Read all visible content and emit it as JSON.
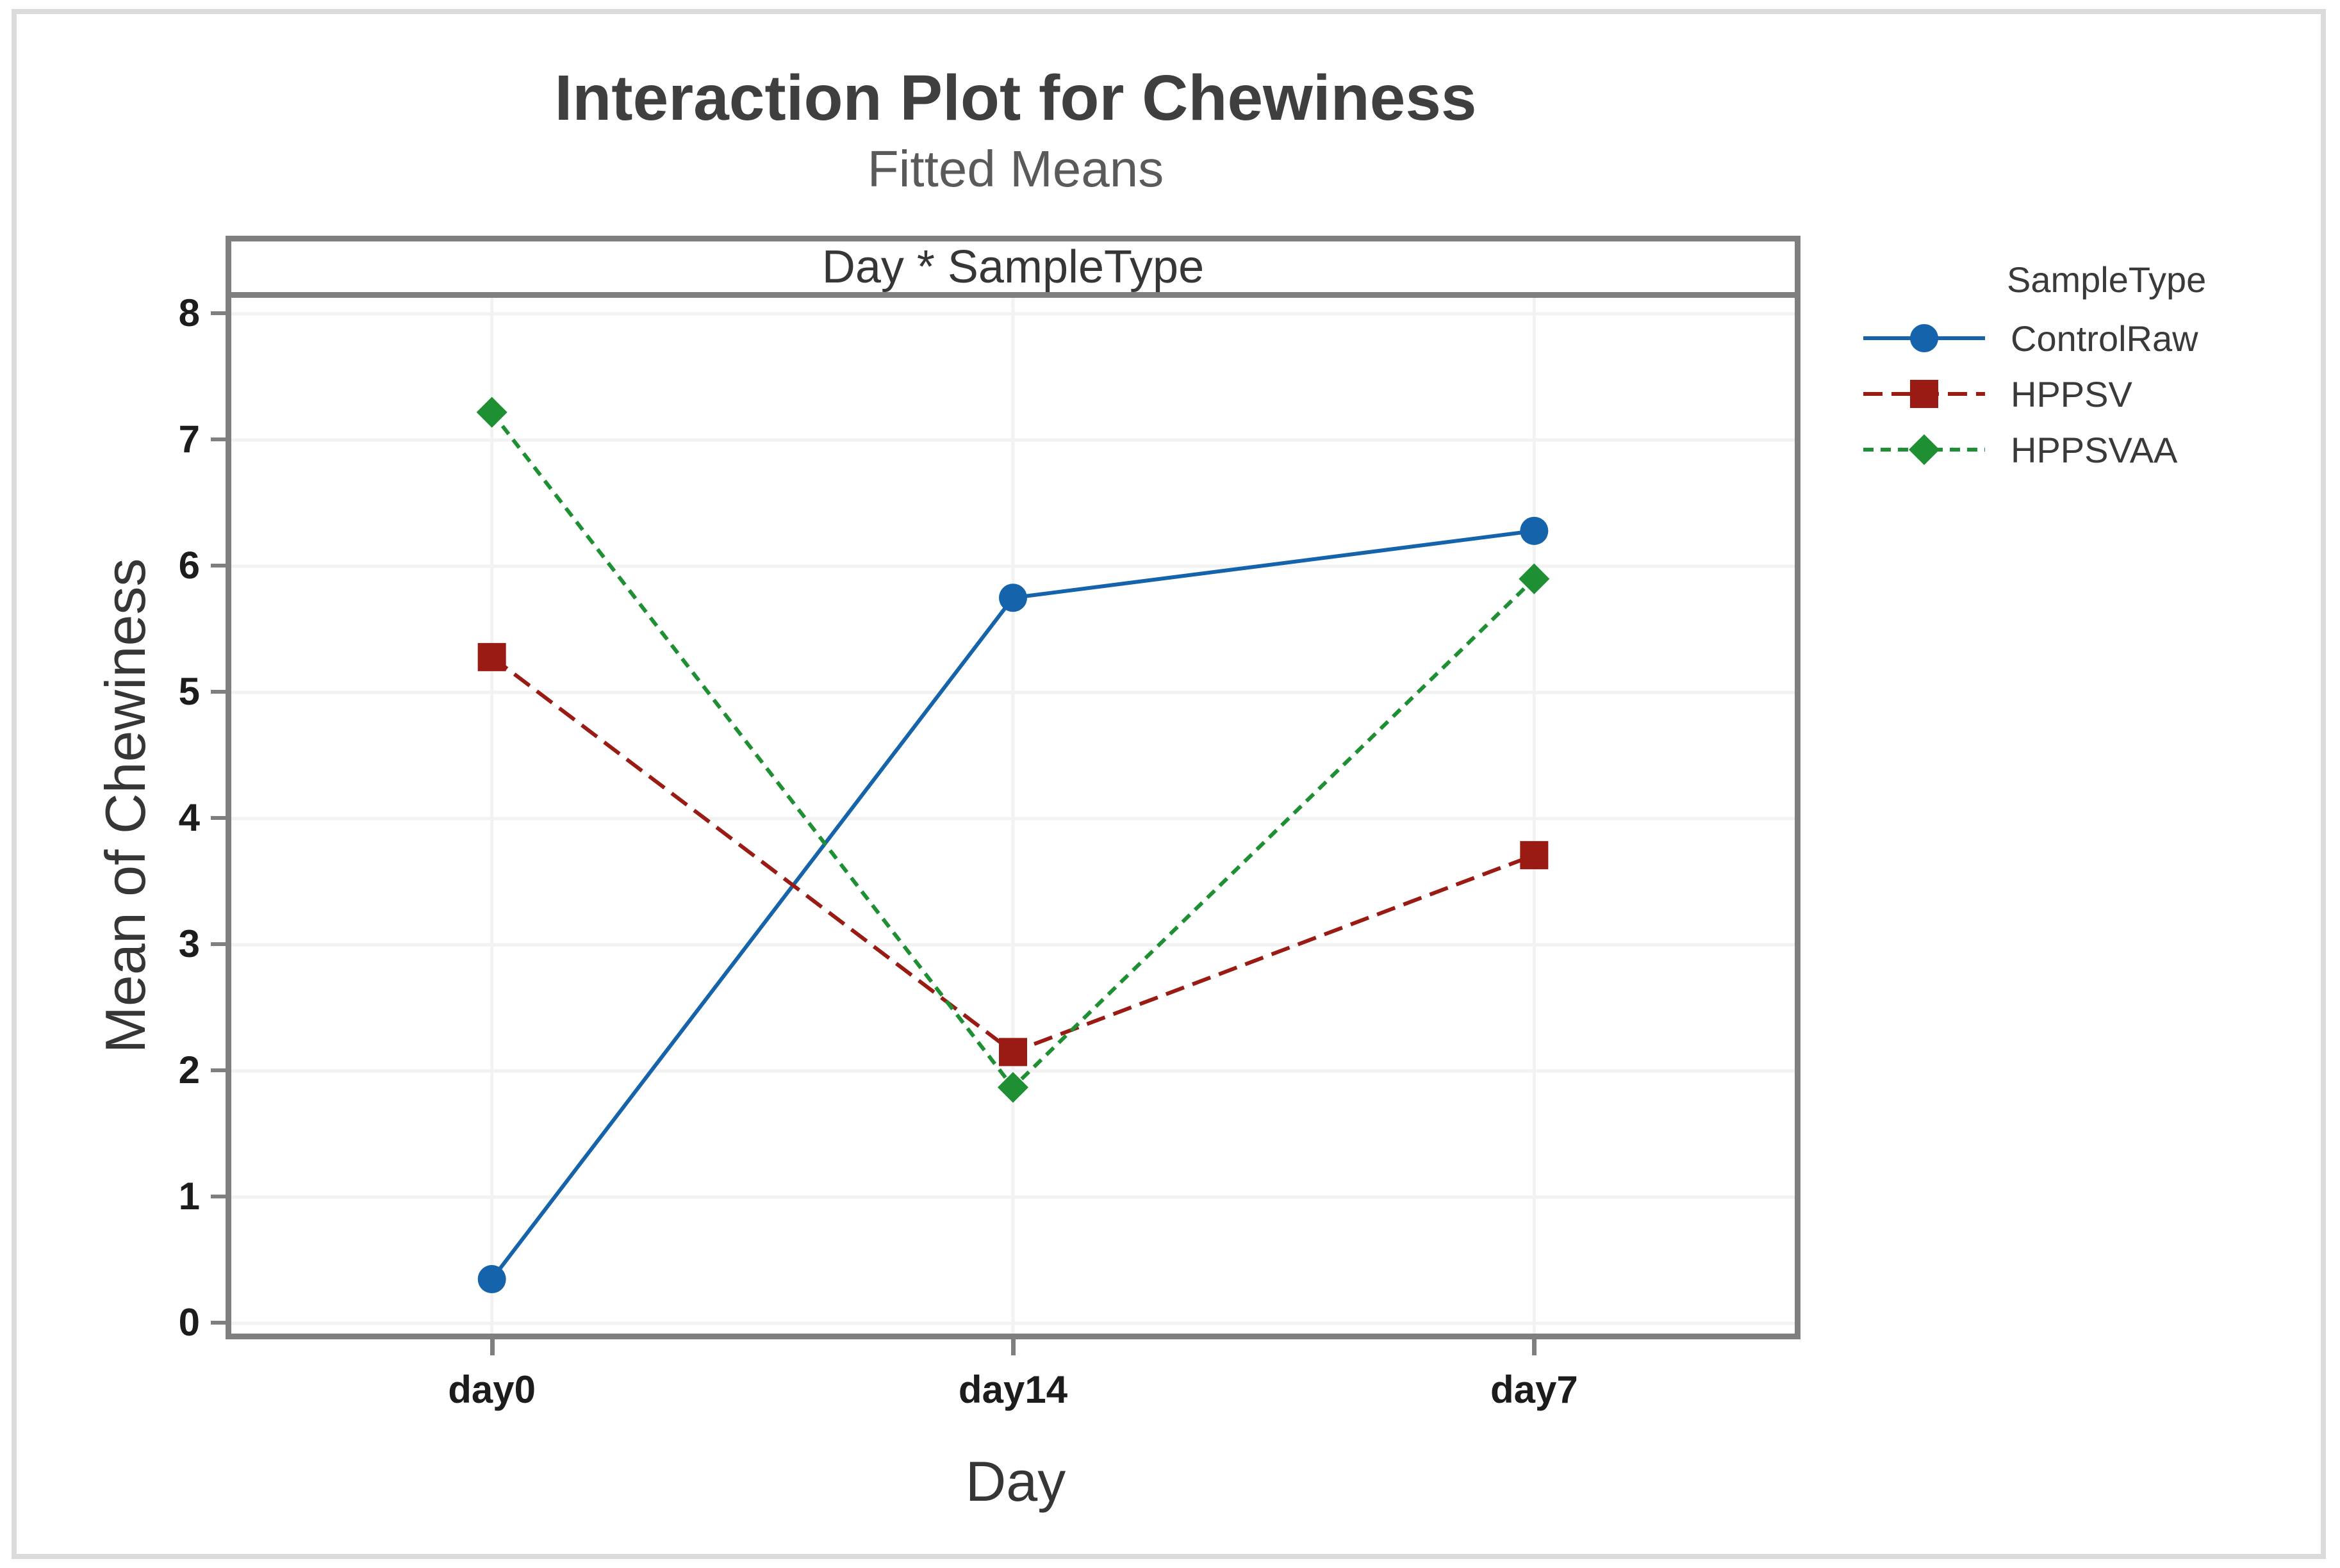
{
  "chart_data": {
    "type": "line",
    "title": "Interaction Plot for Chewiness",
    "subtitle": "Fitted Means",
    "panel_label": "Day * SampleType",
    "xlabel": "Day",
    "ylabel": "Mean of Chewiness",
    "categories": [
      "day0",
      "day14",
      "day7"
    ],
    "yticks": [
      0,
      1,
      2,
      3,
      4,
      5,
      6,
      7,
      8
    ],
    "ylim": [
      0,
      8
    ],
    "grid": true,
    "legend_title": "SampleType",
    "legend_position": "right",
    "series": [
      {
        "name": "ControlRaw",
        "values": [
          0.35,
          5.75,
          6.28
        ],
        "color": "#1563aa",
        "line_style": "solid",
        "marker": "circle"
      },
      {
        "name": "HPPSV",
        "values": [
          5.28,
          2.15,
          3.71
        ],
        "color": "#9a1b13",
        "line_style": "dashed-long",
        "marker": "square"
      },
      {
        "name": "HPPSVAA",
        "values": [
          7.22,
          1.87,
          5.9
        ],
        "color": "#1e8f32",
        "line_style": "dashed-short",
        "marker": "diamond"
      }
    ],
    "colors": {
      "panel_border": "#7f7f7f",
      "outer_border": "#dbdbdb",
      "gridline": "#f2f2f2",
      "tick_text": "#1c1c1c",
      "title_text": "#3f3f3f",
      "subtitle_text": "#5a5a5a"
    }
  }
}
